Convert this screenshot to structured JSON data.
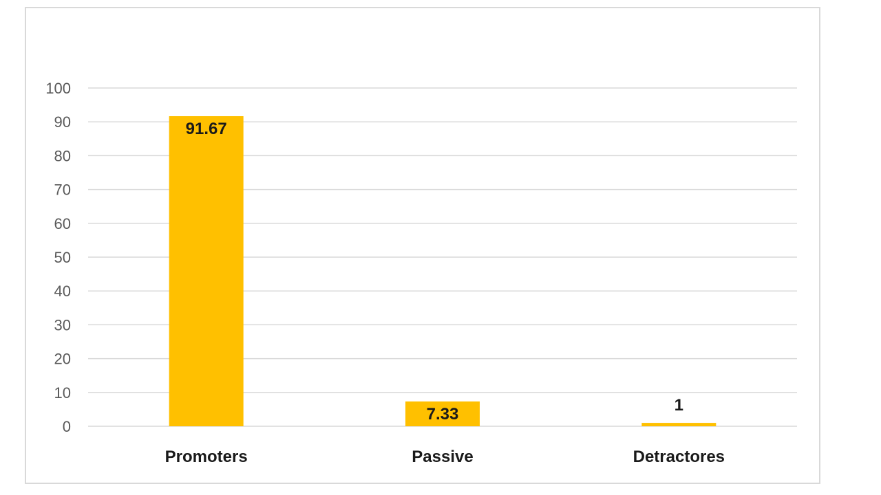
{
  "chart_data": {
    "type": "bar",
    "categories": [
      "Promoters",
      "Passive",
      "Detractores"
    ],
    "values": [
      91.67,
      7.33,
      1
    ],
    "data_labels": [
      "91.67",
      "7.33",
      "1"
    ],
    "title": "",
    "xlabel": "",
    "ylabel": "",
    "ylim": [
      0,
      100
    ],
    "yticks": [
      0,
      10,
      20,
      30,
      40,
      50,
      60,
      70,
      80,
      90,
      100
    ],
    "grid": true,
    "legend": "none",
    "colors": {
      "bar": "#FFC000",
      "grid": "#d9d9d9",
      "axis_text": "#595959",
      "label_text": "#1a1a1a"
    }
  }
}
